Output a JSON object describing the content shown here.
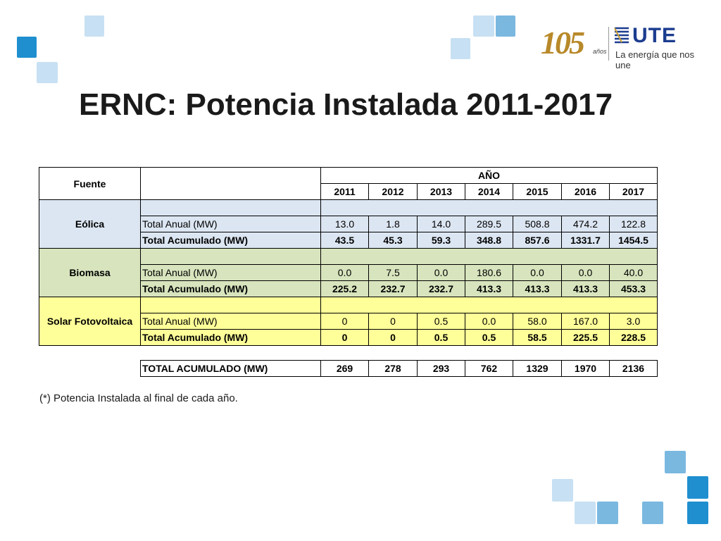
{
  "slide": {
    "title": "ERNC: Potencia Instalada 2011-2017",
    "note": "(*) Potencia Instalada al final de cada año."
  },
  "logo": {
    "anniversary": "105",
    "anniversary_suffix": "años",
    "brand": "UTE",
    "tagline": "La energía que nos une"
  },
  "table": {
    "fuente_header": "Fuente",
    "year_header": "AÑO",
    "years": [
      "2011",
      "2012",
      "2013",
      "2014",
      "2015",
      "2016",
      "2017"
    ],
    "groups": [
      {
        "source": "Eólica",
        "color": "#dce6f2",
        "rows": [
          {
            "label": "Total Anual (MW)",
            "values": [
              "13.0",
              "1.8",
              "14.0",
              "289.5",
              "508.8",
              "474.2",
              "122.8"
            ]
          },
          {
            "label": "Total Acumulado (MW)",
            "values": [
              "43.5",
              "45.3",
              "59.3",
              "348.8",
              "857.6",
              "1331.7",
              "1454.5"
            ]
          }
        ]
      },
      {
        "source": "Biomasa",
        "color": "#d7e4bd",
        "rows": [
          {
            "label": "Total Anual (MW)",
            "values": [
              "0.0",
              "7.5",
              "0.0",
              "180.6",
              "0.0",
              "0.0",
              "40.0"
            ]
          },
          {
            "label": "Total Acumulado (MW)",
            "values": [
              "225.2",
              "232.7",
              "232.7",
              "413.3",
              "413.3",
              "413.3",
              "453.3"
            ]
          }
        ]
      },
      {
        "source": "Solar Fotovoltaica",
        "color": "#ffff99",
        "rows": [
          {
            "label": "Total Anual (MW)",
            "values": [
              "0",
              "0",
              "0.5",
              "0.0",
              "58.0",
              "167.0",
              "3.0"
            ]
          },
          {
            "label": "Total Acumulado (MW)",
            "values": [
              "0",
              "0",
              "0.5",
              "0.5",
              "58.5",
              "225.5",
              "228.5"
            ]
          }
        ]
      }
    ],
    "total": {
      "label": "TOTAL ACUMULADO (MW)",
      "values": [
        "269",
        "278",
        "293",
        "762",
        "1329",
        "1970",
        "2136"
      ]
    }
  }
}
